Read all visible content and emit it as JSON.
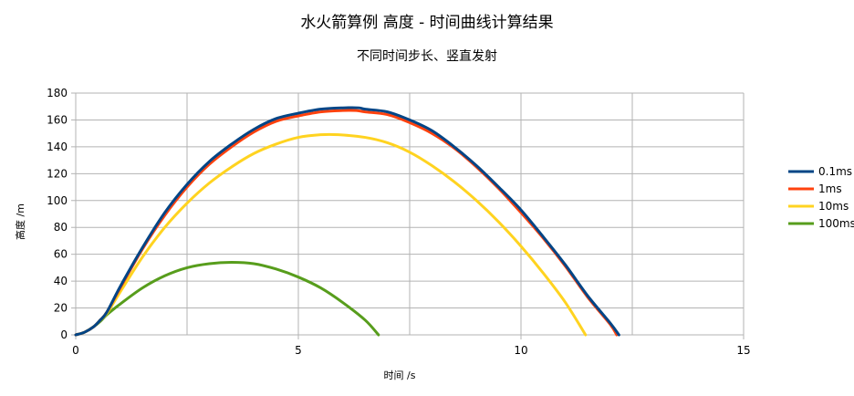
{
  "chart_data": {
    "type": "line",
    "title": "水火箭算例 高度 - 时间曲线计算结果",
    "subtitle": "不同时间步长、竖直发射",
    "xlabel": "时间 /s",
    "ylabel": "高度 /m",
    "xlim": [
      0,
      15
    ],
    "ylim": [
      0,
      180
    ],
    "xticks": [
      0,
      5,
      10,
      15
    ],
    "yticks": [
      0,
      20,
      40,
      60,
      80,
      100,
      120,
      140,
      160,
      180
    ],
    "grid": true,
    "legend": "right",
    "series": [
      {
        "name": "0.1ms",
        "color": "#004586",
        "x": [
          0,
          0.2,
          0.4,
          0.55,
          0.7,
          1.0,
          1.5,
          2.0,
          2.5,
          3.0,
          3.5,
          4.0,
          4.5,
          5.0,
          5.5,
          6.0,
          6.36,
          6.5,
          7.0,
          7.5,
          8.0,
          8.5,
          9.0,
          9.5,
          10.0,
          10.5,
          11.0,
          11.5,
          12.0,
          12.2
        ],
        "y": [
          0,
          2,
          6,
          11,
          17,
          36,
          65,
          91,
          112,
          129,
          142,
          153,
          161,
          165,
          168,
          169,
          169,
          168,
          166,
          160,
          152,
          140,
          126,
          110,
          93,
          73,
          52,
          29,
          9,
          0
        ]
      },
      {
        "name": "1ms",
        "color": "#ff420e",
        "x": [
          0,
          0.2,
          0.4,
          0.55,
          0.7,
          1.0,
          1.5,
          2.0,
          2.5,
          3.0,
          3.5,
          4.0,
          4.5,
          5.0,
          5.5,
          6.0,
          6.3,
          6.5,
          7.0,
          7.5,
          8.0,
          8.5,
          9.0,
          9.5,
          10.0,
          10.5,
          11.0,
          11.5,
          12.0,
          12.15
        ],
        "y": [
          0,
          2,
          6,
          11,
          17,
          35,
          64,
          89,
          110,
          127,
          140,
          151,
          159,
          163,
          166,
          167,
          167,
          166,
          164,
          158,
          150,
          139,
          125,
          109,
          91,
          72,
          51,
          28,
          8,
          0
        ]
      },
      {
        "name": "10ms",
        "color": "#ffd320",
        "x": [
          0,
          0.2,
          0.4,
          0.55,
          0.7,
          1.0,
          1.5,
          2.0,
          2.5,
          3.0,
          3.5,
          4.0,
          4.5,
          5.0,
          5.5,
          5.9,
          6.5,
          7.0,
          7.5,
          8.0,
          8.5,
          9.0,
          9.5,
          10.0,
          10.5,
          11.0,
          11.45
        ],
        "y": [
          0,
          2,
          6,
          11,
          16,
          32,
          58,
          80,
          98,
          113,
          125,
          135,
          142,
          147,
          149,
          149,
          147,
          143,
          136,
          126,
          114,
          100,
          84,
          66,
          46,
          24,
          0
        ]
      },
      {
        "name": "100ms",
        "color": "#579d1c",
        "x": [
          0,
          0.2,
          0.4,
          0.55,
          0.7,
          1.0,
          1.5,
          2.0,
          2.5,
          3.0,
          3.5,
          4.0,
          4.5,
          5.0,
          5.5,
          6.0,
          6.5,
          6.8
        ],
        "y": [
          0,
          2,
          6,
          10,
          15,
          23,
          35,
          44,
          50,
          53,
          54,
          53,
          49,
          43,
          35,
          24,
          11,
          0
        ]
      }
    ]
  }
}
